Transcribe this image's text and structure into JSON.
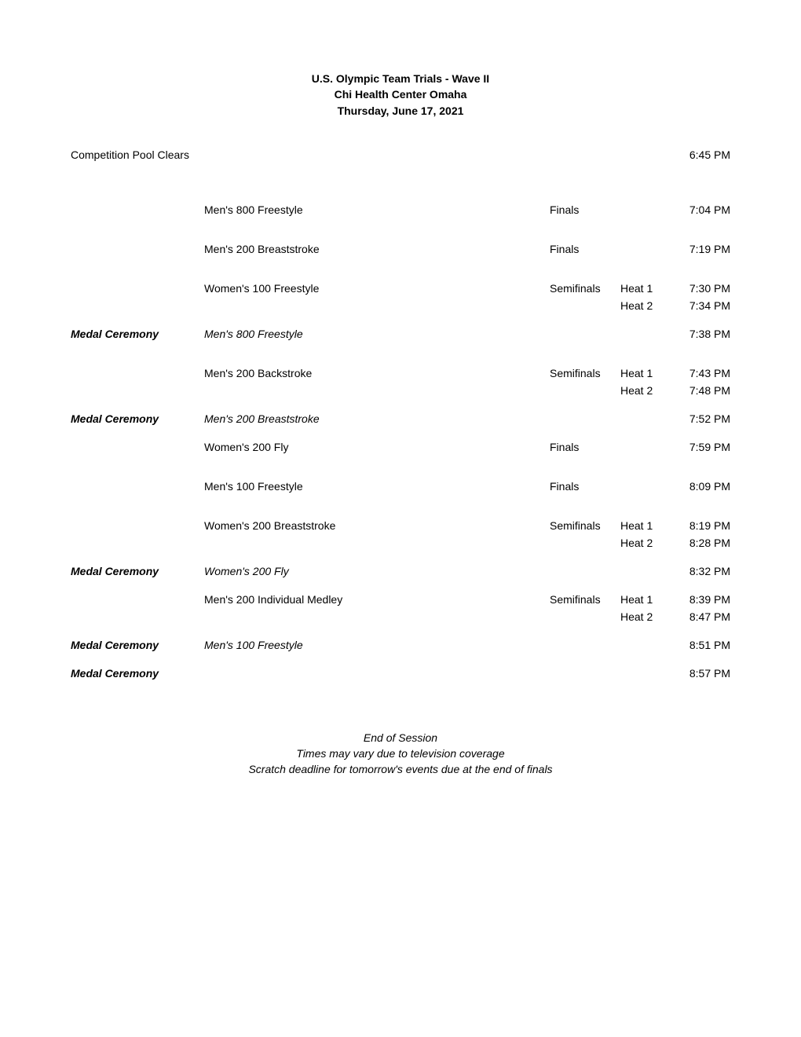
{
  "header": {
    "line1": "U.S. Olympic Team Trials - Wave II",
    "line2": "Chi Health Center Omaha",
    "line3": "Thursday, June 17, 2021"
  },
  "pool_clears": {
    "label": "Competition Pool Clears",
    "time": "6:45 PM"
  },
  "rows": [
    {
      "label": "",
      "event": "Men's 800 Freestyle",
      "round": "Finals",
      "heat": "",
      "time": "7:04 PM",
      "gap_after": "med",
      "style": ""
    },
    {
      "label": "",
      "event": "Men's 200 Breaststroke",
      "round": "Finals",
      "heat": "",
      "time": "7:19 PM",
      "gap_after": "med",
      "style": ""
    },
    {
      "label": "",
      "event": "Women's 100 Freestyle",
      "round": "Semifinals",
      "heat": "Heat 1",
      "time": "7:30 PM",
      "gap_after": "",
      "style": ""
    },
    {
      "label": "",
      "event": "",
      "round": "",
      "heat": "Heat 2",
      "time": "7:34 PM",
      "gap_after": "small",
      "style": ""
    },
    {
      "label": "Medal Ceremony",
      "event": "Men's 800 Freestyle",
      "round": "",
      "heat": "",
      "time": "7:38 PM",
      "gap_after": "med",
      "style": "ceremony"
    },
    {
      "label": "",
      "event": "Men's 200 Backstroke",
      "round": "Semifinals",
      "heat": "Heat 1",
      "time": "7:43 PM",
      "gap_after": "",
      "style": ""
    },
    {
      "label": "",
      "event": "",
      "round": "",
      "heat": "Heat 2",
      "time": "7:48 PM",
      "gap_after": "small",
      "style": ""
    },
    {
      "label": "Medal Ceremony",
      "event": "Men's 200 Breaststroke",
      "round": "",
      "heat": "",
      "time": "7:52 PM",
      "gap_after": "small",
      "style": "ceremony"
    },
    {
      "label": "",
      "event": "Women's 200 Fly",
      "round": "Finals",
      "heat": "",
      "time": "7:59 PM",
      "gap_after": "med",
      "style": ""
    },
    {
      "label": "",
      "event": "Men's 100 Freestyle",
      "round": "Finals",
      "heat": "",
      "time": "8:09 PM",
      "gap_after": "med",
      "style": ""
    },
    {
      "label": "",
      "event": "Women's 200 Breaststroke",
      "round": "Semifinals",
      "heat": "Heat 1",
      "time": "8:19 PM",
      "gap_after": "",
      "style": ""
    },
    {
      "label": "",
      "event": "",
      "round": "",
      "heat": "Heat 2",
      "time": "8:28 PM",
      "gap_after": "small",
      "style": ""
    },
    {
      "label": "Medal Ceremony",
      "event": "Women's 200 Fly",
      "round": "",
      "heat": "",
      "time": "8:32 PM",
      "gap_after": "small",
      "style": "ceremony"
    },
    {
      "label": "",
      "event": "Men's 200 Individual Medley",
      "round": "Semifinals",
      "heat": "Heat 1",
      "time": "8:39 PM",
      "gap_after": "",
      "style": ""
    },
    {
      "label": "",
      "event": "",
      "round": "",
      "heat": "Heat 2",
      "time": "8:47 PM",
      "gap_after": "small",
      "style": ""
    },
    {
      "label": "Medal Ceremony",
      "event": "Men's 100 Freestyle",
      "round": "",
      "heat": "",
      "time": "8:51 PM",
      "gap_after": "small",
      "style": "ceremony"
    },
    {
      "label": "Medal Ceremony",
      "event": "",
      "round": "",
      "heat": "",
      "time": "8:57 PM",
      "gap_after": "large",
      "style": "ceremony"
    }
  ],
  "footer": {
    "line1": "End of Session",
    "line2": "Times may vary due to television coverage",
    "line3": "Scratch deadline for tomorrow's events due at the end of finals"
  }
}
